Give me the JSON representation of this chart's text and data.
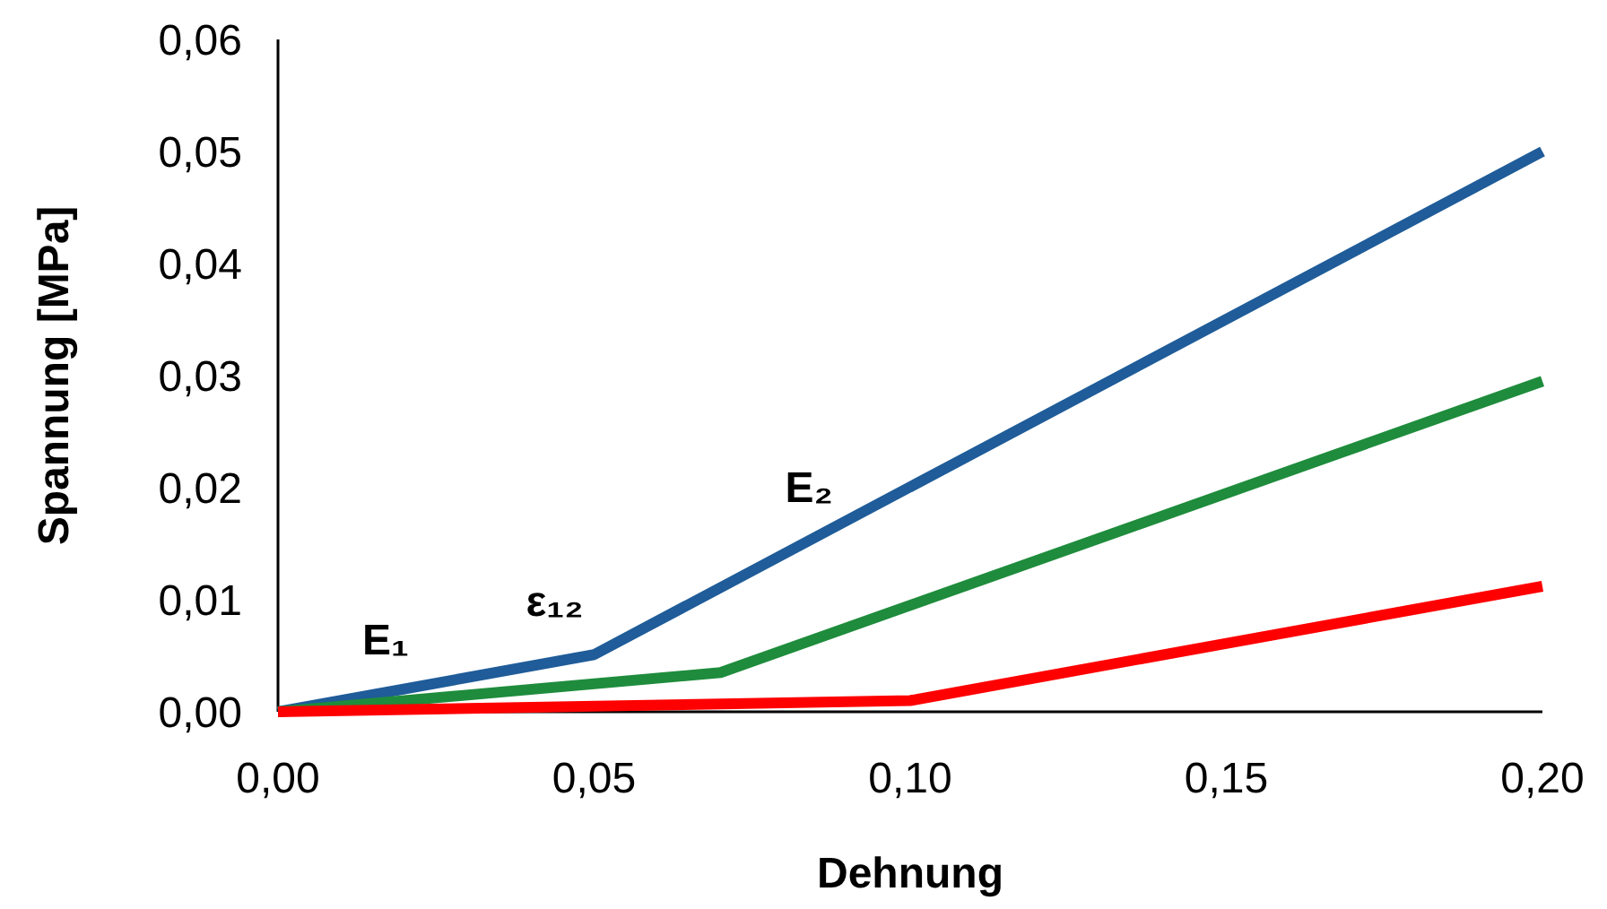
{
  "chart_data": {
    "type": "line",
    "xlabel": "Dehnung",
    "ylabel": "Spannung [MPa]",
    "xlim": [
      0,
      0.2
    ],
    "xticks": [
      {
        "value": 0,
        "label": "0,00"
      },
      {
        "value": 0.05,
        "label": "0,05"
      },
      {
        "value": 0.1,
        "label": "0,10"
      },
      {
        "value": 0.15,
        "label": "0,15"
      },
      {
        "value": 0.2,
        "label": "0,20"
      }
    ],
    "ylim": [
      0,
      0.06
    ],
    "yticks": [
      {
        "value": 0,
        "label": "0,00"
      },
      {
        "value": 0.01,
        "label": "0,01"
      },
      {
        "value": 0.02,
        "label": "0,02"
      },
      {
        "value": 0.03,
        "label": "0,03"
      },
      {
        "value": 0.04,
        "label": "0,04"
      },
      {
        "value": 0.05,
        "label": "0,05"
      },
      {
        "value": 0.06,
        "label": "0,06"
      }
    ],
    "grid": false,
    "marker": "none",
    "line_style": "solid",
    "series": [
      {
        "color": "#1f5c99",
        "x": [
          0,
          0.05,
          0.2
        ],
        "values": [
          0,
          0.0051,
          0.05
        ]
      },
      {
        "color": "#1e8c3c",
        "x": [
          0,
          0.07,
          0.2
        ],
        "values": [
          0,
          0.0035,
          0.0295
        ]
      },
      {
        "color": "#ff0000",
        "x": [
          0,
          0.1,
          0.2
        ],
        "values": [
          0,
          0.001,
          0.0112
        ]
      }
    ],
    "annotations": [
      {
        "text": "E₁",
        "x": 0.017,
        "y": 0.0017
      },
      {
        "text": "ε₁₂",
        "x": 0.05,
        "y": 0.0051
      },
      {
        "text": "E₂",
        "x": 0.084,
        "y": 0.0153
      }
    ]
  }
}
